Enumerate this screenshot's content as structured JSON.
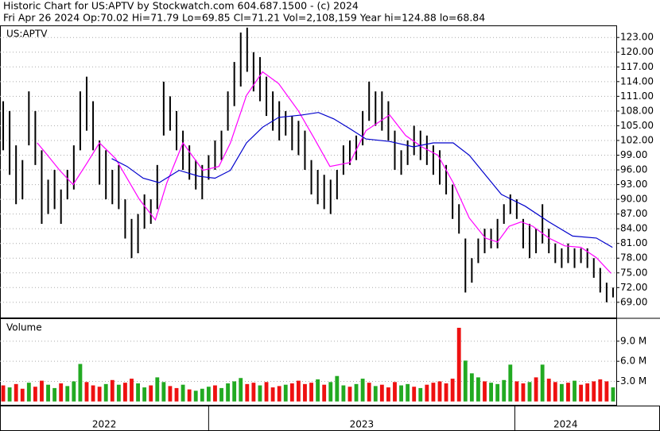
{
  "chart_data": {
    "type": "stock",
    "title": "Historic Chart for US:APTV by Stockwatch.com 604.687.1500 - (c) 2024",
    "subtitle": "Fri Apr 26 2024  Op:70.02  Hi=71.79  Lo=69.85  Cl=71.21  Vol=2,108,159  Year hi=124.88  lo=68.84",
    "symbol": "US:APTV",
    "grid": true,
    "xlim": [
      0,
      96
    ],
    "ylim": [
      65.9,
      125.3
    ],
    "yticks": [
      {
        "value": 69,
        "label": "69.00"
      },
      {
        "value": 72,
        "label": "72.00"
      },
      {
        "value": 75,
        "label": "75.00"
      },
      {
        "value": 78,
        "label": "78.00"
      },
      {
        "value": 81,
        "label": "81.00"
      },
      {
        "value": 84,
        "label": "84.00"
      },
      {
        "value": 87,
        "label": "87.00"
      },
      {
        "value": 90,
        "label": "90.00"
      },
      {
        "value": 93,
        "label": "93.00"
      },
      {
        "value": 96,
        "label": "96.00"
      },
      {
        "value": 99,
        "label": "99.00"
      },
      {
        "value": 102,
        "label": "102.00"
      },
      {
        "value": 105,
        "label": "105.00"
      },
      {
        "value": 108,
        "label": "108.00"
      },
      {
        "value": 111,
        "label": "111.00"
      },
      {
        "value": 114,
        "label": "114.00"
      },
      {
        "value": 117,
        "label": "117.00"
      },
      {
        "value": 120,
        "label": "120.00"
      },
      {
        "value": 123,
        "label": "123.00"
      }
    ],
    "bar_color": "#000000",
    "high": [
      110,
      108,
      101,
      98,
      112,
      108,
      100,
      94,
      96,
      92,
      96,
      101,
      112,
      115,
      110,
      102,
      100,
      96,
      97,
      90,
      86,
      87,
      91,
      90,
      97,
      114,
      111,
      108,
      104,
      101,
      98,
      97,
      99,
      102,
      104,
      112,
      118,
      124,
      125,
      120,
      119,
      115,
      112,
      110,
      108,
      107,
      106,
      104,
      98,
      96,
      95,
      94,
      96,
      101,
      102,
      103,
      108,
      114,
      112,
      112,
      110,
      104,
      100,
      102,
      105,
      104,
      103,
      101,
      100,
      97,
      93,
      89,
      82,
      78,
      82,
      84,
      84,
      86,
      89,
      91,
      90,
      86,
      85,
      84,
      89,
      84,
      81,
      80,
      81,
      80,
      80,
      80,
      78,
      76,
      73,
      72
    ],
    "low": [
      100,
      95,
      89,
      90,
      101,
      97,
      85,
      87,
      88,
      85,
      90,
      92,
      100,
      104,
      100,
      93,
      90,
      89,
      88,
      82,
      78,
      79,
      84,
      85,
      88,
      103,
      104,
      100,
      96,
      94,
      92,
      90,
      94,
      96,
      98,
      104,
      109,
      113,
      116,
      112,
      110,
      107,
      104,
      102,
      103,
      100,
      99,
      96,
      91,
      89,
      88,
      87,
      90,
      95,
      97,
      98,
      101,
      106,
      105,
      104,
      102,
      96,
      95,
      97,
      99,
      98,
      97,
      95,
      93,
      91,
      86,
      83,
      71,
      73,
      77,
      79,
      80,
      80,
      85,
      87,
      86,
      80,
      78,
      79,
      81,
      79,
      77,
      76,
      77,
      76,
      77,
      76,
      74,
      71,
      69,
      70
    ],
    "moving_averages": [
      {
        "color": "#ff00ff",
        "x": [
          5.3,
          6.9,
          8.8,
          10.9,
          13.1,
          15,
          17.5,
          21.2,
          23.7,
          25.5,
          28,
          31.1,
          33.6,
          35.4,
          37.9,
          40.4,
          42.9,
          46,
          48.5,
          50.9,
          54,
          56.5,
          60.2,
          62.7,
          65.2,
          67.7,
          70.1,
          72.6,
          75.1,
          77,
          78.8,
          80.7,
          82.5,
          85,
          87.5,
          90,
          92.4,
          94.7
        ],
        "values": [
          101.5,
          99,
          95.9,
          93,
          97.5,
          101.5,
          98.3,
          90,
          85.8,
          93.4,
          101.5,
          95.9,
          96.7,
          101.5,
          111.2,
          116,
          113.6,
          108,
          102.3,
          96.7,
          97.5,
          104,
          107.2,
          103,
          100.7,
          99,
          93.4,
          86.2,
          82.1,
          81.3,
          84.5,
          85.4,
          84.5,
          82.1,
          80.5,
          80.2,
          78.1,
          74.9
        ]
      },
      {
        "color": "#0000cc",
        "x": [
          16.9,
          19.3,
          21.8,
          24.3,
          27.4,
          30.5,
          33,
          35.4,
          37.9,
          40.4,
          42.9,
          46.6,
          49.1,
          51.5,
          54,
          56.5,
          60.2,
          63.9,
          67,
          70.1,
          72.6,
          75.1,
          77.6,
          81.3,
          85,
          88.7,
          92.4,
          94.9
        ],
        "values": [
          98.3,
          96.7,
          94.3,
          93.4,
          95.9,
          94.7,
          94.3,
          95.9,
          101.5,
          104.7,
          106.7,
          107.2,
          107.7,
          106.4,
          104.4,
          102.3,
          101.8,
          100.7,
          101.5,
          101.5,
          99,
          95,
          91,
          88.6,
          85.4,
          82.5,
          82.1,
          80.2
        ]
      }
    ],
    "volume": {
      "label": "Volume",
      "ylim": [
        -0.5,
        12.3
      ],
      "yticks": [
        {
          "value": 3,
          "label": "3.0 M"
        },
        {
          "value": 6,
          "label": "6.0 M"
        },
        {
          "value": 9,
          "label": "9.0 M"
        }
      ],
      "colors": {
        "up": "#22aa22",
        "down": "#ee1111"
      },
      "values": [
        2.4,
        2.1,
        2.6,
        1.9,
        2.8,
        2.2,
        3.1,
        2.5,
        2.0,
        2.7,
        2.3,
        3.0,
        5.6,
        2.9,
        2.4,
        2.2,
        2.6,
        3.2,
        2.5,
        2.8,
        3.4,
        2.7,
        2.1,
        2.4,
        3.6,
        2.9,
        2.3,
        2.0,
        2.5,
        1.8,
        1.6,
        1.9,
        2.2,
        2.4,
        2.0,
        2.7,
        3.0,
        3.5,
        2.6,
        2.8,
        2.4,
        2.9,
        2.1,
        2.3,
        2.5,
        2.7,
        3.1,
        2.6,
        2.8,
        3.3,
        2.5,
        2.9,
        3.8,
        2.4,
        2.2,
        2.6,
        3.4,
        2.8,
        2.3,
        2.5,
        2.1,
        2.9,
        2.4,
        2.6,
        2.2,
        2.0,
        2.5,
        2.8,
        3.0,
        2.7,
        3.4,
        11.0,
        6.1,
        4.2,
        3.6,
        3.0,
        2.8,
        2.6,
        3.2,
        5.5,
        3.0,
        2.7,
        2.9,
        3.6,
        5.5,
        3.4,
        2.9,
        2.6,
        2.8,
        3.1,
        2.5,
        2.7,
        3.0,
        3.3,
        3.0,
        2.1
      ],
      "direction": [
        "down",
        "up",
        "down",
        "down",
        "up",
        "down",
        "down",
        "up",
        "up",
        "down",
        "up",
        "up",
        "up",
        "down",
        "down",
        "down",
        "up",
        "down",
        "up",
        "down",
        "down",
        "up",
        "up",
        "down",
        "up",
        "up",
        "down",
        "down",
        "up",
        "down",
        "up",
        "up",
        "up",
        "down",
        "up",
        "up",
        "up",
        "up",
        "down",
        "down",
        "up",
        "down",
        "down",
        "down",
        "up",
        "down",
        "down",
        "down",
        "down",
        "up",
        "down",
        "up",
        "up",
        "up",
        "down",
        "up",
        "up",
        "down",
        "up",
        "down",
        "down",
        "down",
        "up",
        "up",
        "down",
        "up",
        "down",
        "down",
        "down",
        "down",
        "down",
        "down",
        "up",
        "up",
        "up",
        "down",
        "up",
        "up",
        "up",
        "up",
        "down",
        "down",
        "up",
        "down",
        "up",
        "down",
        "down",
        "up",
        "down",
        "up",
        "down",
        "down",
        "down",
        "down",
        "down",
        "up"
      ]
    },
    "years": [
      {
        "label": "2022",
        "start": 0,
        "end": 32.5
      },
      {
        "label": "2023",
        "start": 32.5,
        "end": 80.2
      },
      {
        "label": "2024",
        "start": 80.2,
        "end": 96
      }
    ]
  }
}
